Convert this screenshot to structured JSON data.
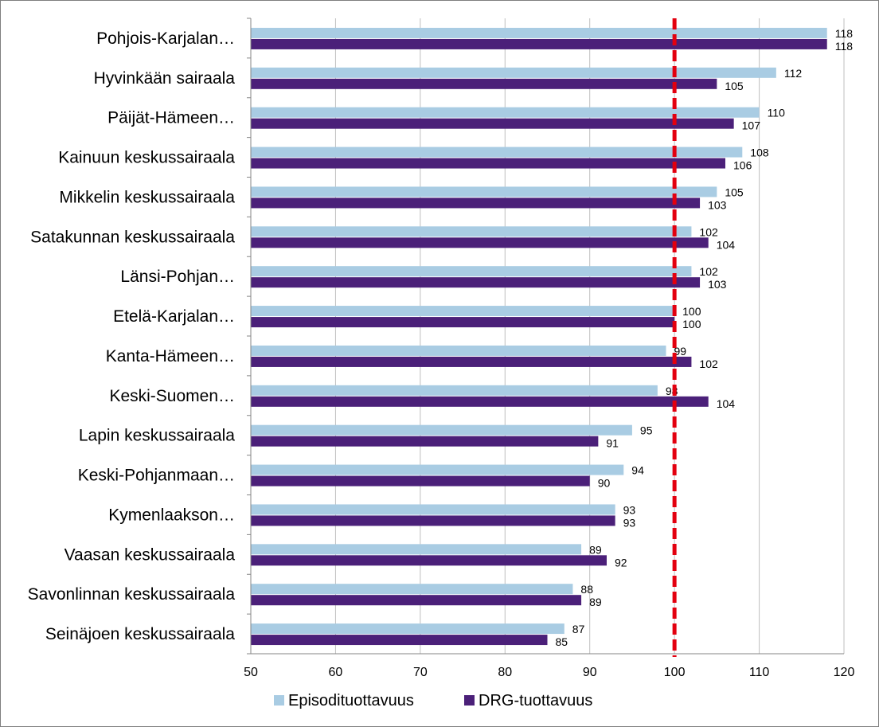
{
  "chart_data": {
    "type": "bar",
    "orientation": "horizontal",
    "title": "",
    "xlabel": "",
    "ylabel": "",
    "xlim": [
      50,
      120
    ],
    "xticks": [
      50,
      60,
      70,
      80,
      90,
      100,
      110,
      120
    ],
    "grid": "vertical",
    "legend_position": "bottom",
    "reference_line": {
      "value": 100,
      "color": "#e3000f",
      "style": "dashed"
    },
    "categories": [
      "Pohjois-Karjalan…",
      "Hyvinkään sairaala",
      "Päijät-Hämeen…",
      "Kainuun keskussairaala",
      "Mikkelin keskussairaala",
      "Satakunnan keskussairaala",
      "Länsi-Pohjan…",
      "Etelä-Karjalan…",
      "Kanta-Hämeen…",
      "Keski-Suomen…",
      "Lapin keskussairaala",
      "Keski-Pohjanmaan…",
      "Kymenlaakson…",
      "Vaasan keskussairaala",
      "Savonlinnan keskussairaala",
      "Seinäjoen keskussairaala"
    ],
    "series": [
      {
        "name": "Episodituottavuus",
        "color": "#a9cce3",
        "values": [
          118,
          112,
          110,
          108,
          105,
          102,
          102,
          100,
          99,
          98,
          95,
          94,
          93,
          89,
          88,
          87
        ]
      },
      {
        "name": "DRG-tuottavuus",
        "color": "#4b2079",
        "values": [
          118,
          105,
          107,
          106,
          103,
          104,
          103,
          100,
          102,
          104,
          91,
          90,
          93,
          92,
          89,
          85
        ]
      }
    ]
  }
}
